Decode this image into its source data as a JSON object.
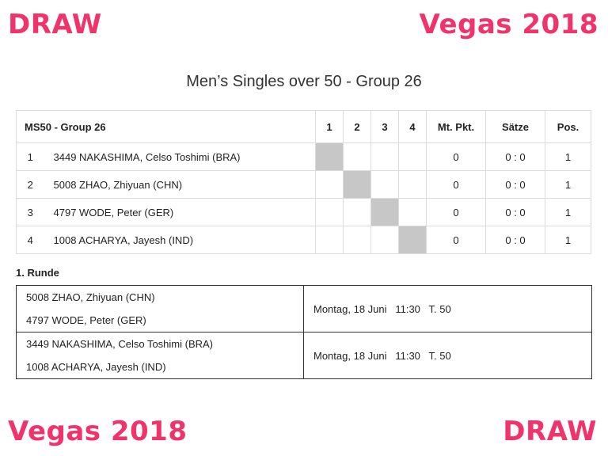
{
  "corners": {
    "top_left": "DRAW",
    "top_right": "Vegas 2018",
    "bottom_left": "Vegas 2018",
    "bottom_right": "DRAW"
  },
  "colors": {
    "accent": "#f0336b",
    "diagonal_cell": "#c7c7c7"
  },
  "title": "Men’s Singles over 50 - Group 26",
  "group_table": {
    "headers": {
      "group": "MS50 - Group 26",
      "c1": "1",
      "c2": "2",
      "c3": "3",
      "c4": "4",
      "points": "Mt. Pkt.",
      "sets": "Sätze",
      "pos": "Pos."
    },
    "rows": [
      {
        "idx": "1",
        "name": "3449 NAKASHIMA, Celso Toshimi (BRA)",
        "points": "0",
        "sets": "0 : 0",
        "pos": "1"
      },
      {
        "idx": "2",
        "name": "5008 ZHAO, Zhiyuan (CHN)",
        "points": "0",
        "sets": "0 : 0",
        "pos": "1"
      },
      {
        "idx": "3",
        "name": "4797 WODE, Peter (GER)",
        "points": "0",
        "sets": "0 : 0",
        "pos": "1"
      },
      {
        "idx": "4",
        "name": "1008 ACHARYA, Jayesh (IND)",
        "points": "0",
        "sets": "0 : 0",
        "pos": "1"
      }
    ]
  },
  "round": {
    "label": "1. Runde",
    "matches": [
      {
        "player1": "5008 ZHAO, Zhiyuan (CHN)",
        "player2": "4797 WODE, Peter (GER)",
        "schedule": "Montag, 18 Juni   11:30   T. 50"
      },
      {
        "player1": "3449 NAKASHIMA, Celso Toshimi (BRA)",
        "player2": "1008 ACHARYA, Jayesh (IND)",
        "schedule": "Montag, 18 Juni   11:30   T. 50"
      }
    ]
  }
}
